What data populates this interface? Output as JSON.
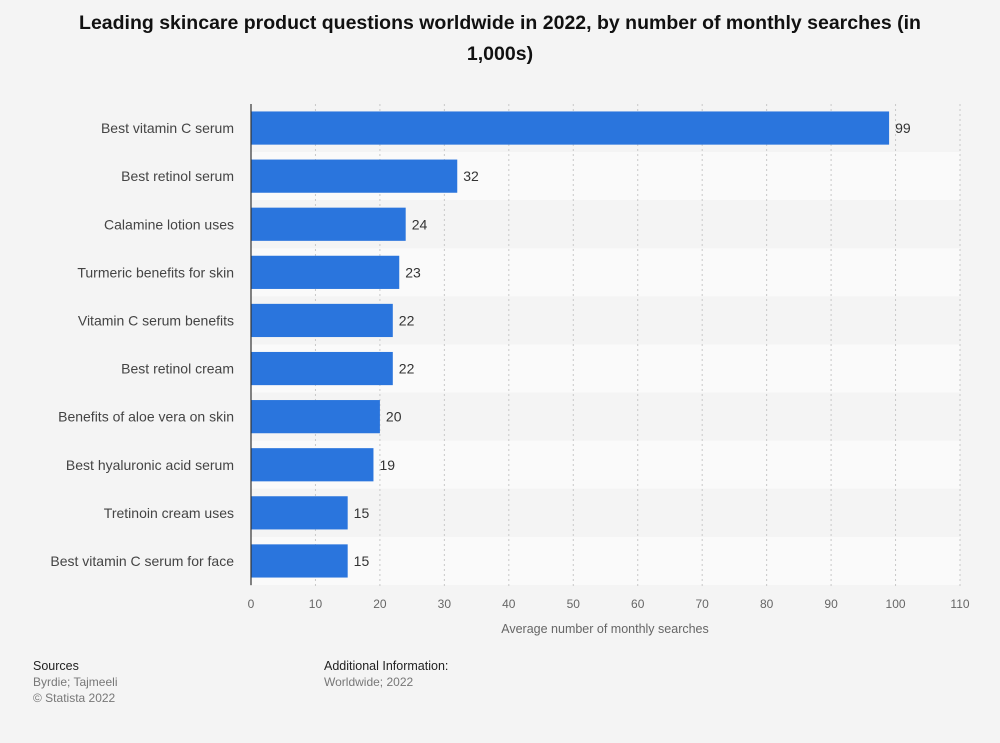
{
  "chart_data": {
    "type": "bar",
    "orientation": "horizontal",
    "title": "Leading skincare product questions worldwide in 2022, by number of monthly searches (in 1,000s)",
    "categories": [
      "Best vitamin C serum",
      "Best retinol serum",
      "Calamine lotion uses",
      "Turmeric benefits for skin",
      "Vitamin C serum benefits",
      "Best retinol cream",
      "Benefits of aloe vera on skin",
      "Best hyaluronic acid serum",
      "Tretinoin cream uses",
      "Best vitamin C serum for face"
    ],
    "values": [
      99,
      32,
      24,
      23,
      22,
      22,
      20,
      19,
      15,
      15
    ],
    "xlabel": "Average number of monthly searches",
    "ylabel": "",
    "xlim": [
      0,
      110
    ],
    "xticks": [
      0,
      10,
      20,
      30,
      40,
      50,
      60,
      70,
      80,
      90,
      100,
      110
    ],
    "grid": true,
    "bar_color": "#2a75dd",
    "legend": "none"
  },
  "footer": {
    "sources_heading": "Sources",
    "sources_line1": "Byrdie; Tajmeeli",
    "sources_line2": "© Statista 2022",
    "info_heading": "Additional Information:",
    "info_line1": "Worldwide; 2022"
  }
}
